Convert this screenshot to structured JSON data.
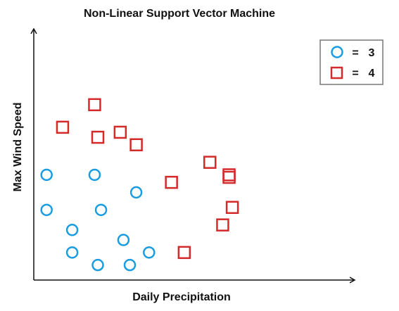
{
  "chart_data": {
    "type": "scatter",
    "title": "Non-Linear Support Vector Machine",
    "xlabel": "Daily Precipitation",
    "ylabel": "Max Wind Speed",
    "xlim": [
      0,
      100
    ],
    "ylim": [
      0,
      100
    ],
    "grid": false,
    "legend_position": "top-right",
    "series": [
      {
        "name": "3",
        "marker": "circle",
        "color": "#1a9de0",
        "points": [
          [
            4,
            42
          ],
          [
            19,
            42
          ],
          [
            32,
            35
          ],
          [
            4,
            28
          ],
          [
            21,
            28
          ],
          [
            12,
            20
          ],
          [
            28,
            16
          ],
          [
            12,
            11
          ],
          [
            36,
            11
          ],
          [
            20,
            6
          ],
          [
            30,
            6
          ]
        ]
      },
      {
        "name": "4",
        "marker": "square",
        "color": "#d42a2a",
        "points": [
          [
            19,
            70
          ],
          [
            9,
            61
          ],
          [
            20,
            57
          ],
          [
            27,
            59
          ],
          [
            32,
            54
          ],
          [
            55,
            47
          ],
          [
            43,
            39
          ],
          [
            61,
            42
          ],
          [
            62,
            29
          ],
          [
            59,
            22
          ],
          [
            47,
            11
          ],
          [
            61,
            41
          ]
        ]
      }
    ],
    "legend": [
      {
        "label": "=",
        "value": "3",
        "marker": "circle"
      },
      {
        "label": "=",
        "value": "4",
        "marker": "square"
      }
    ]
  }
}
